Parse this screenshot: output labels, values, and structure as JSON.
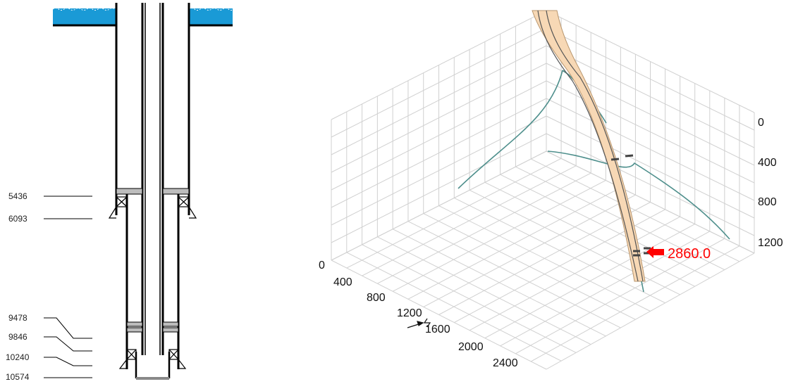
{
  "wellbore_schematic": {
    "depth_markers": [
      "5436",
      "6093",
      "9478",
      "9846",
      "10240",
      "10574"
    ],
    "colors": {
      "sea": "#1a9ad6",
      "casing": "#000000",
      "seal": "#bdbdbd"
    }
  },
  "trajectory_plot": {
    "vertical_ticks": [
      "0",
      "400",
      "800",
      "1200"
    ],
    "horizontal_ticks": [
      "0",
      "400",
      "800",
      "1200",
      "1600",
      "2000",
      "2400"
    ],
    "annotation": {
      "text": "2860.0",
      "color": "#ff0000"
    },
    "colors": {
      "wellbore": "#f7d8b5",
      "wellbore_edge": "#b9966e",
      "projection": "#4e8f8c",
      "grid": "#d0d0d0"
    },
    "icons": [
      "north-arrow-icon",
      "annotation-arrow-icon"
    ]
  }
}
